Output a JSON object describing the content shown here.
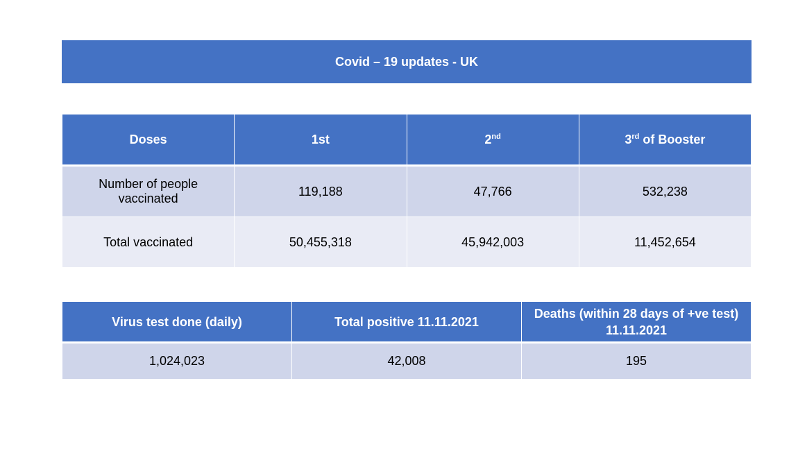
{
  "title": "Covid – 19 updates - UK",
  "vaccine_table": {
    "headers": [
      {
        "text": "Doses",
        "sup": ""
      },
      {
        "text": "1st",
        "sup": ""
      },
      {
        "text": "2",
        "sup": "nd"
      },
      {
        "text": "3",
        "sup": "rd",
        "rest": " of Booster"
      }
    ],
    "rows": [
      {
        "label": "Number of people vaccinated",
        "values": [
          "119,188",
          "47,766",
          "532,238"
        ]
      },
      {
        "label": "Total vaccinated",
        "values": [
          "50,455,318",
          "45,942,003",
          "11,452,654"
        ]
      }
    ]
  },
  "test_table": {
    "headers": [
      "Virus test done (daily)",
      "Total positive 11.11.2021",
      "Deaths (within 28 days of +ve test) 11.11.2021"
    ],
    "values": [
      "1,024,023",
      "42,008",
      "195"
    ]
  },
  "colors": {
    "header": "#4472c4",
    "row_dark": "#cfd5ea",
    "row_light": "#e9ebf5"
  }
}
